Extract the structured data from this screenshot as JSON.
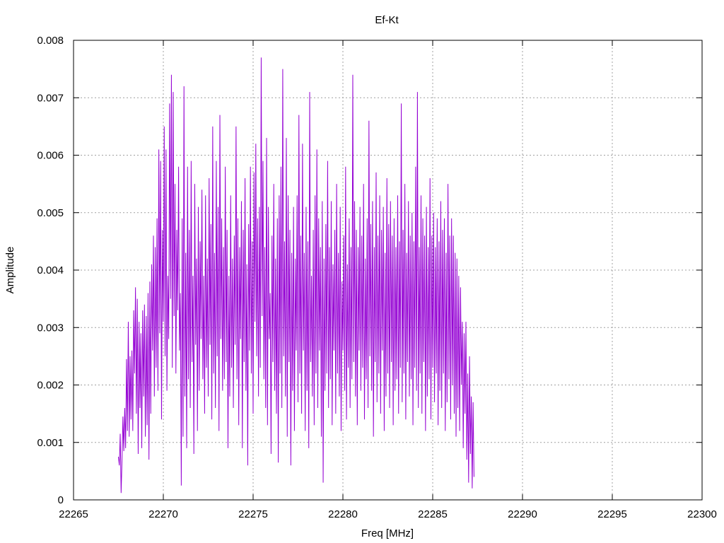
{
  "chart_data": {
    "type": "line",
    "title": "Ef-Kt",
    "xlabel": "Freq [MHz]",
    "ylabel": "Amplitude",
    "xlim": [
      22265,
      22300
    ],
    "ylim": [
      0,
      0.008
    ],
    "x_ticks": [
      "22265",
      "22270",
      "22275",
      "22280",
      "22285",
      "22290",
      "22295",
      "22300"
    ],
    "y_ticks": [
      "0",
      "0.001",
      "0.002",
      "0.003",
      "0.004",
      "0.005",
      "0.006",
      "0.007",
      "0.008"
    ],
    "grid": true,
    "series": [
      {
        "color": "#9400d3",
        "x_start": 22267.5,
        "x_step": 0.05,
        "values": [
          0.00075,
          0.0006,
          0.00115,
          0.00012,
          0.0007,
          0.00145,
          0.00085,
          0.0016,
          0.0009,
          0.00245,
          0.0012,
          0.0031,
          0.0011,
          0.0025,
          0.0014,
          0.0026,
          0.0012,
          0.0033,
          0.0022,
          0.0037,
          0.0015,
          0.0035,
          0.0008,
          0.0031,
          0.0016,
          0.0029,
          0.0009,
          0.0033,
          0.0018,
          0.0034,
          0.0011,
          0.0032,
          0.0013,
          0.0036,
          0.0007,
          0.0038,
          0.0015,
          0.0041,
          0.0026,
          0.0046,
          0.0018,
          0.0044,
          0.0023,
          0.0049,
          0.0019,
          0.0061,
          0.0029,
          0.0059,
          0.0014,
          0.0047,
          0.0031,
          0.0065,
          0.0025,
          0.0061,
          0.0019,
          0.0039,
          0.0028,
          0.0069,
          0.0035,
          0.0074,
          0.0023,
          0.0071,
          0.0032,
          0.0055,
          0.0022,
          0.0047,
          0.0033,
          0.0058,
          0.0026,
          0.0036,
          0.00025,
          0.0049,
          0.0011,
          0.0072,
          0.0018,
          0.0043,
          0.0009,
          0.0058,
          0.0021,
          0.0047,
          0.0016,
          0.0059,
          0.0024,
          0.0039,
          0.0008,
          0.0055,
          0.0027,
          0.0042,
          0.0012,
          0.0051,
          0.0019,
          0.0045,
          0.0028,
          0.0054,
          0.0021,
          0.0039,
          0.0015,
          0.0053,
          0.0023,
          0.0042,
          0.0018,
          0.0056,
          0.0027,
          0.0048,
          0.0014,
          0.0065,
          0.0022,
          0.0043,
          0.0016,
          0.0059,
          0.0025,
          0.0051,
          0.0012,
          0.0067,
          0.0028,
          0.0049,
          0.0019,
          0.0044,
          0.0021,
          0.0058,
          0.0024,
          0.0047,
          0.0009,
          0.0039,
          0.0018,
          0.0053,
          0.0023,
          0.0042,
          0.0016,
          0.0046,
          0.0027,
          0.0065,
          0.0021,
          0.0049,
          0.0013,
          0.0044,
          0.0028,
          0.0052,
          0.0009,
          0.0047,
          0.0024,
          0.0056,
          0.0019,
          0.0041,
          0.0006,
          0.0048,
          0.0026,
          0.0058,
          0.0022,
          0.0045,
          0.0015,
          0.0057,
          0.0031,
          0.0062,
          0.0025,
          0.0049,
          0.0018,
          0.0051,
          0.0023,
          0.0077,
          0.0032,
          0.0059,
          0.0021,
          0.0044,
          0.0016,
          0.0063,
          0.0013,
          0.0051,
          0.0028,
          0.0036,
          0.0008,
          0.0046,
          0.0024,
          0.0055,
          0.0019,
          0.0042,
          0.0015,
          0.0049,
          0.00065,
          0.0053,
          0.0022,
          0.0058,
          0.0016,
          0.0075,
          0.0025,
          0.0045,
          0.0018,
          0.0063,
          0.0011,
          0.0053,
          0.0024,
          0.0047,
          0.0006,
          0.0043,
          0.0019,
          0.0051,
          0.0012,
          0.0042,
          0.0026,
          0.0053,
          0.0017,
          0.0067,
          0.0022,
          0.0046,
          0.0015,
          0.0062,
          0.0026,
          0.0043,
          0.0012,
          0.0051,
          0.0019,
          0.0045,
          0.0009,
          0.0071,
          0.0024,
          0.0039,
          0.0018,
          0.0047,
          0.0013,
          0.0053,
          0.0022,
          0.0061,
          0.0016,
          0.0049,
          0.0026,
          0.0044,
          0.0011,
          0.0052,
          0.0003,
          0.0042,
          0.0019,
          0.0048,
          0.0022,
          0.0059,
          0.0016,
          0.0044,
          0.0021,
          0.0052,
          0.0013,
          0.0041,
          0.0026,
          0.0047,
          0.0015,
          0.0055,
          0.0022,
          0.0043,
          0.0018,
          0.0051,
          0.0012,
          0.0038,
          0.0026,
          0.0046,
          0.0019,
          0.0058,
          0.0014,
          0.0041,
          0.0023,
          0.0049,
          0.0016,
          0.0044,
          0.0021,
          0.0074,
          0.0024,
          0.0052,
          0.0018,
          0.0047,
          0.0013,
          0.0044,
          0.0026,
          0.0051,
          0.0019,
          0.0046,
          0.0023,
          0.0055,
          0.0014,
          0.0042,
          0.0021,
          0.0049,
          0.0016,
          0.0066,
          0.0025,
          0.0048,
          0.0019,
          0.0052,
          0.0011,
          0.0044,
          0.0024,
          0.0057,
          0.0017,
          0.0046,
          0.0022,
          0.0053,
          0.0015,
          0.0047,
          0.0026,
          0.0051,
          0.0012,
          0.0043,
          0.0018,
          0.0056,
          0.0022,
          0.0048,
          0.0016,
          0.0052,
          0.0024,
          0.0046,
          0.0013,
          0.0049,
          0.0019,
          0.0044,
          0.0021,
          0.0053,
          0.0015,
          0.0045,
          0.0023,
          0.0069,
          0.0017,
          0.0047,
          0.0022,
          0.0055,
          0.0014,
          0.0043,
          0.0024,
          0.0052,
          0.0018,
          0.0046,
          0.0021,
          0.005,
          0.0013,
          0.0045,
          0.0023,
          0.0058,
          0.0019,
          0.0071,
          0.0016,
          0.0044,
          0.0022,
          0.0053,
          0.0015,
          0.0049,
          0.0024,
          0.0046,
          0.0012,
          0.0051,
          0.0018,
          0.0044,
          0.0021,
          0.0056,
          0.0014,
          0.0046,
          0.0023,
          0.005,
          0.0017,
          0.0044,
          0.0022,
          0.0049,
          0.0013,
          0.0045,
          0.0019,
          0.0052,
          0.0016,
          0.0047,
          0.0022,
          0.0049,
          0.0012,
          0.0043,
          0.0017,
          0.0055,
          0.0021,
          0.0046,
          0.0014,
          0.0049,
          0.002,
          0.0046,
          0.0015,
          0.0043,
          0.0011,
          0.0042,
          0.0016,
          0.0039,
          0.0012,
          0.0037,
          0.002,
          0.0031,
          0.0009,
          0.0029,
          0.0015,
          0.0031,
          0.0007,
          0.0022,
          0.0003,
          0.0025,
          0.0008,
          0.0018,
          0.0002,
          0.0017,
          0.0004
        ]
      }
    ]
  }
}
